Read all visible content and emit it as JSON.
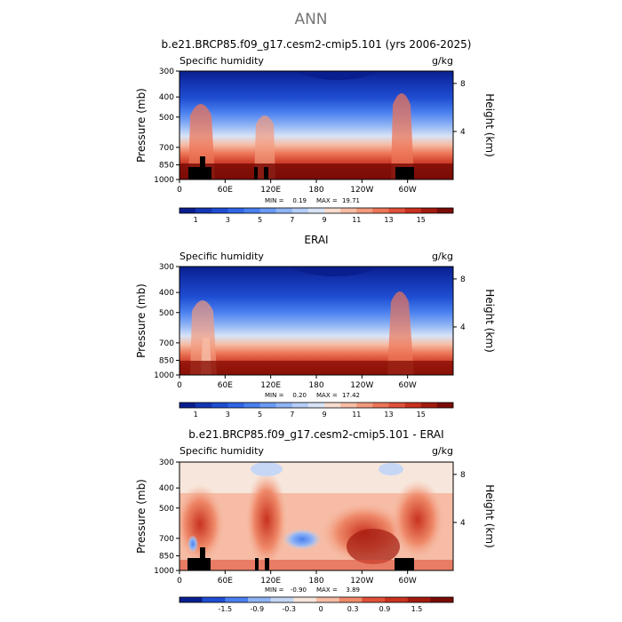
{
  "figure_title": "ANN",
  "chart_data": [
    {
      "type": "heatmap",
      "id": "model",
      "title": "b.e21.BRCP85.f09_g17.cesm2-cmip5.101 (yrs 2006-2025)",
      "left_label": "Specific humidity",
      "right_label": "g/kg",
      "ylabel": "Pressure (mb)",
      "ylabel_right": "Height (km)",
      "x_ticks": [
        "0",
        "60E",
        "120E",
        "180",
        "120W",
        "60W"
      ],
      "y_ticks": [
        "300",
        "400",
        "500",
        "700",
        "850",
        "1000"
      ],
      "height_ticks": [
        "8",
        "4"
      ],
      "stats": {
        "min_label": "MIN =",
        "min": "0.19",
        "max_label": "MAX =",
        "max": "19.71"
      },
      "colorbar_labels": [
        "1",
        "3",
        "5",
        "7",
        "9",
        "11",
        "13",
        "15"
      ],
      "colors": [
        "#0a1f8f",
        "#1436b4",
        "#1f4ed2",
        "#2f66e6",
        "#4a80ef",
        "#6a9af3",
        "#8fb4f5",
        "#b5cdf6",
        "#d8e3f6",
        "#f7dccf",
        "#f6bca5",
        "#f29a7e",
        "#ec7658",
        "#e0513a",
        "#c8321f",
        "#a31b0f",
        "#7a0c06"
      ]
    },
    {
      "type": "heatmap",
      "id": "obs",
      "title": "ERAI",
      "left_label": "Specific humidity",
      "right_label": "g/kg",
      "ylabel": "Pressure (mb)",
      "ylabel_right": "Height (km)",
      "x_ticks": [
        "0",
        "60E",
        "120E",
        "180",
        "120W",
        "60W"
      ],
      "y_ticks": [
        "300",
        "400",
        "500",
        "700",
        "850",
        "1000"
      ],
      "height_ticks": [
        "8",
        "4"
      ],
      "stats": {
        "min_label": "MIN =",
        "min": "0.20",
        "max_label": "MAX =",
        "max": "17.42"
      },
      "colorbar_labels": [
        "1",
        "3",
        "5",
        "7",
        "9",
        "11",
        "13",
        "15"
      ],
      "colors": [
        "#0a1f8f",
        "#1436b4",
        "#1f4ed2",
        "#2f66e6",
        "#4a80ef",
        "#6a9af3",
        "#8fb4f5",
        "#b5cdf6",
        "#d8e3f6",
        "#f7dccf",
        "#f6bca5",
        "#f29a7e",
        "#ec7658",
        "#e0513a",
        "#c8321f",
        "#a31b0f",
        "#7a0c06"
      ]
    },
    {
      "type": "heatmap",
      "id": "diff",
      "title": "b.e21.BRCP85.f09_g17.cesm2-cmip5.101 - ERAI",
      "left_label": "Specific humidity",
      "right_label": "g/kg",
      "ylabel": "Pressure (mb)",
      "ylabel_right": "Height (km)",
      "x_ticks": [
        "0",
        "60E",
        "120E",
        "180",
        "120W",
        "60W"
      ],
      "y_ticks": [
        "300",
        "400",
        "500",
        "700",
        "850",
        "1000"
      ],
      "height_ticks": [
        "8",
        "4"
      ],
      "stats": {
        "min_label": "MIN =",
        "min": "-0.90",
        "max_label": "MAX =",
        "max": "3.89"
      },
      "colorbar_labels": [
        "-1.5",
        "-0.9",
        "-0.3",
        "0",
        "0.3",
        "0.9",
        "1.5"
      ],
      "colors": [
        "#0a1f8f",
        "#1f4ed2",
        "#4a80ef",
        "#8fb4f5",
        "#c6d7f6",
        "#f7e6dc",
        "#f6bca5",
        "#ef8a6a",
        "#e0513a",
        "#c8321f",
        "#a31b0f",
        "#7a0c06"
      ]
    }
  ]
}
